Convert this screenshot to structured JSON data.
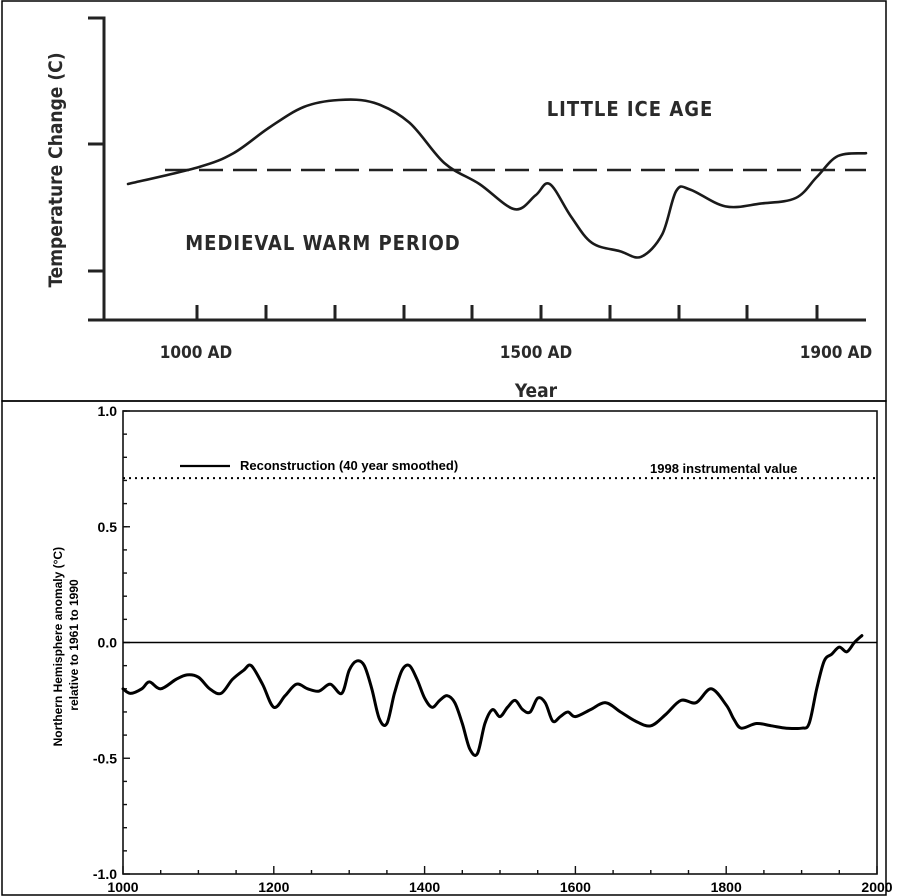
{
  "chart_data": [
    {
      "type": "line",
      "title": "",
      "xlabel": "Year",
      "ylabel": "Temperature Change (C)",
      "x_tick_labels": [
        "1000 AD",
        "1500 AD",
        "1900 AD"
      ],
      "annotations": [
        "LITTLE ICE AGE",
        "MEDIEVAL WARM PERIOD"
      ],
      "reference_line": {
        "style": "dashed"
      },
      "y_ticks_labeled": false,
      "grid": false,
      "series": [
        {
          "x": [
            900,
            1000,
            1050,
            1100,
            1150,
            1200,
            1250,
            1300,
            1350,
            1400,
            1450,
            1480,
            1500,
            1530,
            1560,
            1600,
            1630,
            1660,
            1680,
            1700,
            1750,
            1800,
            1850,
            1880,
            1910,
            1950
          ],
          "y": [
            -0.1,
            0.02,
            0.12,
            0.3,
            0.45,
            0.5,
            0.48,
            0.34,
            0.05,
            -0.1,
            -0.28,
            -0.18,
            -0.1,
            -0.33,
            -0.52,
            -0.58,
            -0.62,
            -0.46,
            -0.15,
            -0.14,
            -0.26,
            -0.24,
            -0.2,
            -0.05,
            0.1,
            0.12
          ]
        }
      ]
    },
    {
      "type": "line",
      "title": "",
      "xlabel": "",
      "ylabel": "Northern Hemisphere anomaly (°C) relative to 1961 to 1990",
      "xlim": [
        1000,
        2000
      ],
      "ylim": [
        -1.0,
        1.0
      ],
      "x_ticks": [
        1000,
        1200,
        1400,
        1600,
        1800,
        2000
      ],
      "y_ticks": [
        1.0,
        0.5,
        0.0,
        -0.5,
        -1.0
      ],
      "y_tick_labels": [
        "1.0",
        "0.5",
        "0.0",
        "-0.5",
        "-1.0"
      ],
      "legend": {
        "placement": "top",
        "entry": "Reconstruction (40 year smoothed)"
      },
      "reference_line": {
        "label": "1998 instrumental value",
        "y": 0.71,
        "style": "dotted"
      },
      "grid": false,
      "series": [
        {
          "name": "Reconstruction (40 year smoothed)",
          "x": [
            1000,
            1010,
            1025,
            1035,
            1050,
            1070,
            1085,
            1100,
            1115,
            1130,
            1145,
            1160,
            1170,
            1185,
            1200,
            1215,
            1230,
            1245,
            1260,
            1275,
            1290,
            1300,
            1310,
            1320,
            1330,
            1340,
            1350,
            1360,
            1370,
            1380,
            1390,
            1400,
            1410,
            1420,
            1430,
            1440,
            1450,
            1460,
            1470,
            1480,
            1490,
            1500,
            1510,
            1520,
            1530,
            1540,
            1550,
            1560,
            1570,
            1580,
            1590,
            1600,
            1620,
            1640,
            1660,
            1680,
            1700,
            1720,
            1740,
            1760,
            1780,
            1800,
            1810,
            1820,
            1840,
            1860,
            1880,
            1900,
            1910,
            1920,
            1930,
            1940,
            1950,
            1960,
            1970,
            1980
          ],
          "y": [
            -0.2,
            -0.22,
            -0.2,
            -0.17,
            -0.2,
            -0.16,
            -0.14,
            -0.15,
            -0.2,
            -0.22,
            -0.16,
            -0.12,
            -0.1,
            -0.18,
            -0.28,
            -0.23,
            -0.18,
            -0.2,
            -0.21,
            -0.18,
            -0.22,
            -0.12,
            -0.08,
            -0.1,
            -0.2,
            -0.33,
            -0.35,
            -0.22,
            -0.12,
            -0.1,
            -0.16,
            -0.24,
            -0.28,
            -0.25,
            -0.23,
            -0.26,
            -0.35,
            -0.46,
            -0.48,
            -0.35,
            -0.29,
            -0.32,
            -0.28,
            -0.25,
            -0.29,
            -0.3,
            -0.24,
            -0.26,
            -0.34,
            -0.32,
            -0.3,
            -0.32,
            -0.29,
            -0.26,
            -0.3,
            -0.34,
            -0.36,
            -0.31,
            -0.25,
            -0.26,
            -0.2,
            -0.27,
            -0.33,
            -0.37,
            -0.35,
            -0.36,
            -0.37,
            -0.37,
            -0.35,
            -0.2,
            -0.08,
            -0.05,
            -0.02,
            -0.04,
            0.0,
            0.03
          ]
        }
      ]
    }
  ]
}
